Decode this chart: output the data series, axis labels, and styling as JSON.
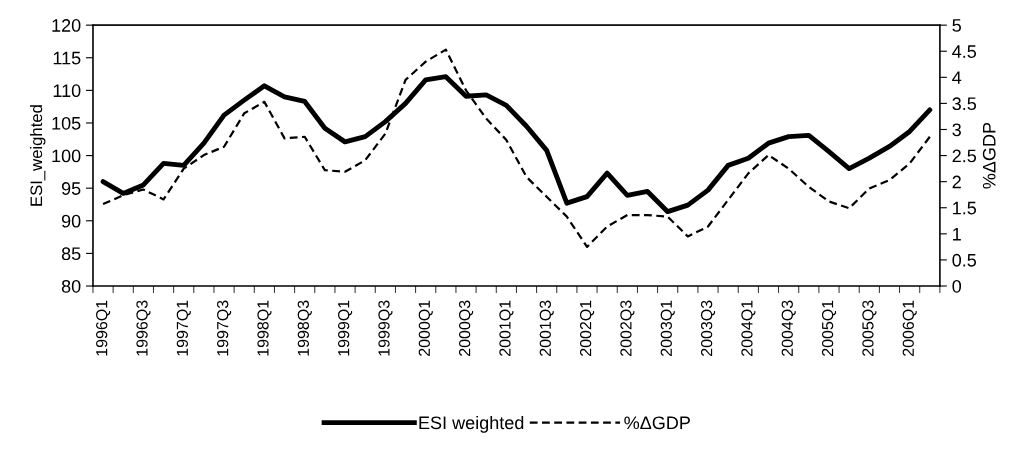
{
  "chart_data": {
    "type": "line",
    "ylabel": "ESI_weighted",
    "y2label": "%ΔGDP",
    "categories": [
      "1996Q1",
      null,
      "1996Q3",
      null,
      "1997Q1",
      null,
      "1997Q3",
      null,
      "1998Q1",
      null,
      "1998Q3",
      null,
      "1999Q1",
      null,
      "1999Q3",
      null,
      "2000Q1",
      null,
      "2000Q3",
      null,
      "2001Q1",
      null,
      "2001Q3",
      null,
      "2002Q1",
      null,
      "2002Q3",
      null,
      "2003Q1",
      null,
      "2003Q3",
      null,
      "2004Q1",
      null,
      "2004Q3",
      null,
      "2005Q1",
      null,
      "2005Q3",
      null,
      "2006Q1",
      null
    ],
    "series": [
      {
        "name": "ESI weighted",
        "color": "#000000",
        "line_style": "solid",
        "values": [
          96.0,
          94.2,
          95.5,
          98.8,
          98.5,
          101.9,
          106.2,
          108.5,
          110.7,
          109.0,
          108.3,
          104.2,
          102.1,
          102.9,
          105.2,
          108.0,
          111.6,
          112.1,
          109.1,
          109.3,
          107.7,
          104.5,
          100.8,
          92.7,
          93.7,
          97.3,
          93.9,
          94.5,
          91.4,
          92.4,
          94.7,
          98.5,
          99.6,
          101.9,
          102.9,
          103.1,
          100.6,
          98.0,
          99.6,
          101.4,
          103.7,
          107.0
        ]
      },
      {
        "name": "%ΔGDP",
        "color": "#000000",
        "line_style": "dashed",
        "axis": "y2",
        "values": [
          1.57,
          1.74,
          1.85,
          1.66,
          2.25,
          2.51,
          2.67,
          3.31,
          3.53,
          2.83,
          2.86,
          2.22,
          2.19,
          2.41,
          2.92,
          3.95,
          4.3,
          4.53,
          3.75,
          3.21,
          2.8,
          2.09,
          1.71,
          1.33,
          0.75,
          1.14,
          1.36,
          1.36,
          1.33,
          0.95,
          1.14,
          1.65,
          2.16,
          2.51,
          2.25,
          1.9,
          1.62,
          1.49,
          1.87,
          2.03,
          2.35,
          2.86
        ]
      }
    ],
    "ylim": [
      80,
      120
    ],
    "yticks": [
      80,
      85,
      90,
      95,
      100,
      105,
      110,
      115,
      120
    ],
    "y2lim": [
      0,
      5
    ],
    "y2ticks": [
      0,
      0.5,
      1,
      1.5,
      2,
      2.5,
      3,
      3.5,
      4,
      4.5,
      5
    ],
    "grid": false,
    "legend": "bottom"
  }
}
